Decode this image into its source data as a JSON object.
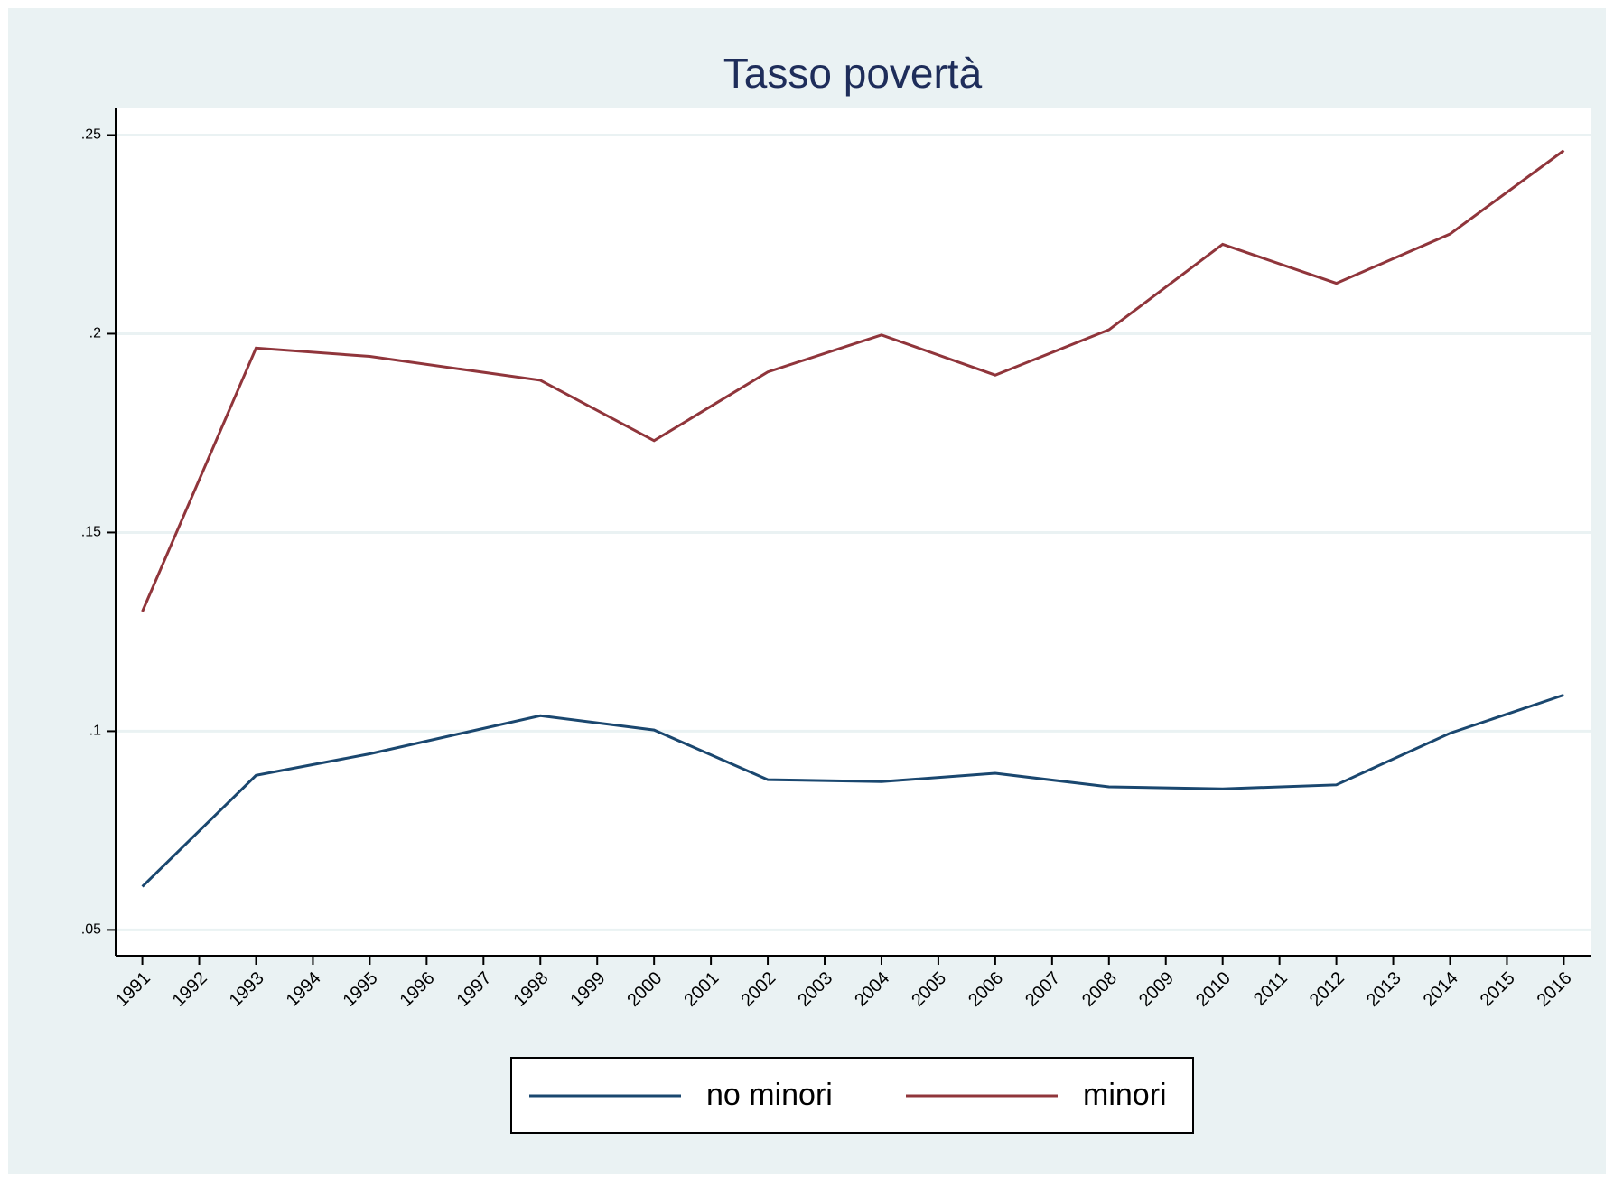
{
  "chart_data": {
    "type": "line",
    "title": "Tasso povertà",
    "x": [
      1991,
      1993,
      1995,
      1998,
      2000,
      2002,
      2004,
      2006,
      2008,
      2010,
      2012,
      2014,
      2016
    ],
    "series": [
      {
        "name": "no minori",
        "color": "#1a476f",
        "values": [
          0.0609,
          0.0889,
          0.0943,
          0.1039,
          0.1003,
          0.0878,
          0.0873,
          0.0894,
          0.086,
          0.0855,
          0.0865,
          0.0995,
          0.1091
        ]
      },
      {
        "name": "minori",
        "color": "#90353b",
        "values": [
          0.1301,
          0.1964,
          0.1943,
          0.1883,
          0.1731,
          0.1904,
          0.1997,
          0.1896,
          0.201,
          0.2225,
          0.2127,
          0.2251,
          0.2461
        ]
      }
    ],
    "xlim": [
      1990.53,
      2016.47
    ],
    "xticks": [
      1991,
      1992,
      1993,
      1994,
      1995,
      1996,
      1997,
      1998,
      1999,
      2000,
      2001,
      2002,
      2003,
      2004,
      2005,
      2006,
      2007,
      2008,
      2009,
      2010,
      2011,
      2012,
      2013,
      2014,
      2015,
      2016
    ],
    "ylim": [
      0.0435,
      0.2567
    ],
    "yticks": [
      {
        "value": 0.05,
        "label": ".05"
      },
      {
        "value": 0.1,
        "label": ".1"
      },
      {
        "value": 0.15,
        "label": ".15"
      },
      {
        "value": 0.2,
        "label": ".2"
      },
      {
        "value": 0.25,
        "label": ".25"
      }
    ],
    "grid": true,
    "legend": "bottom"
  }
}
